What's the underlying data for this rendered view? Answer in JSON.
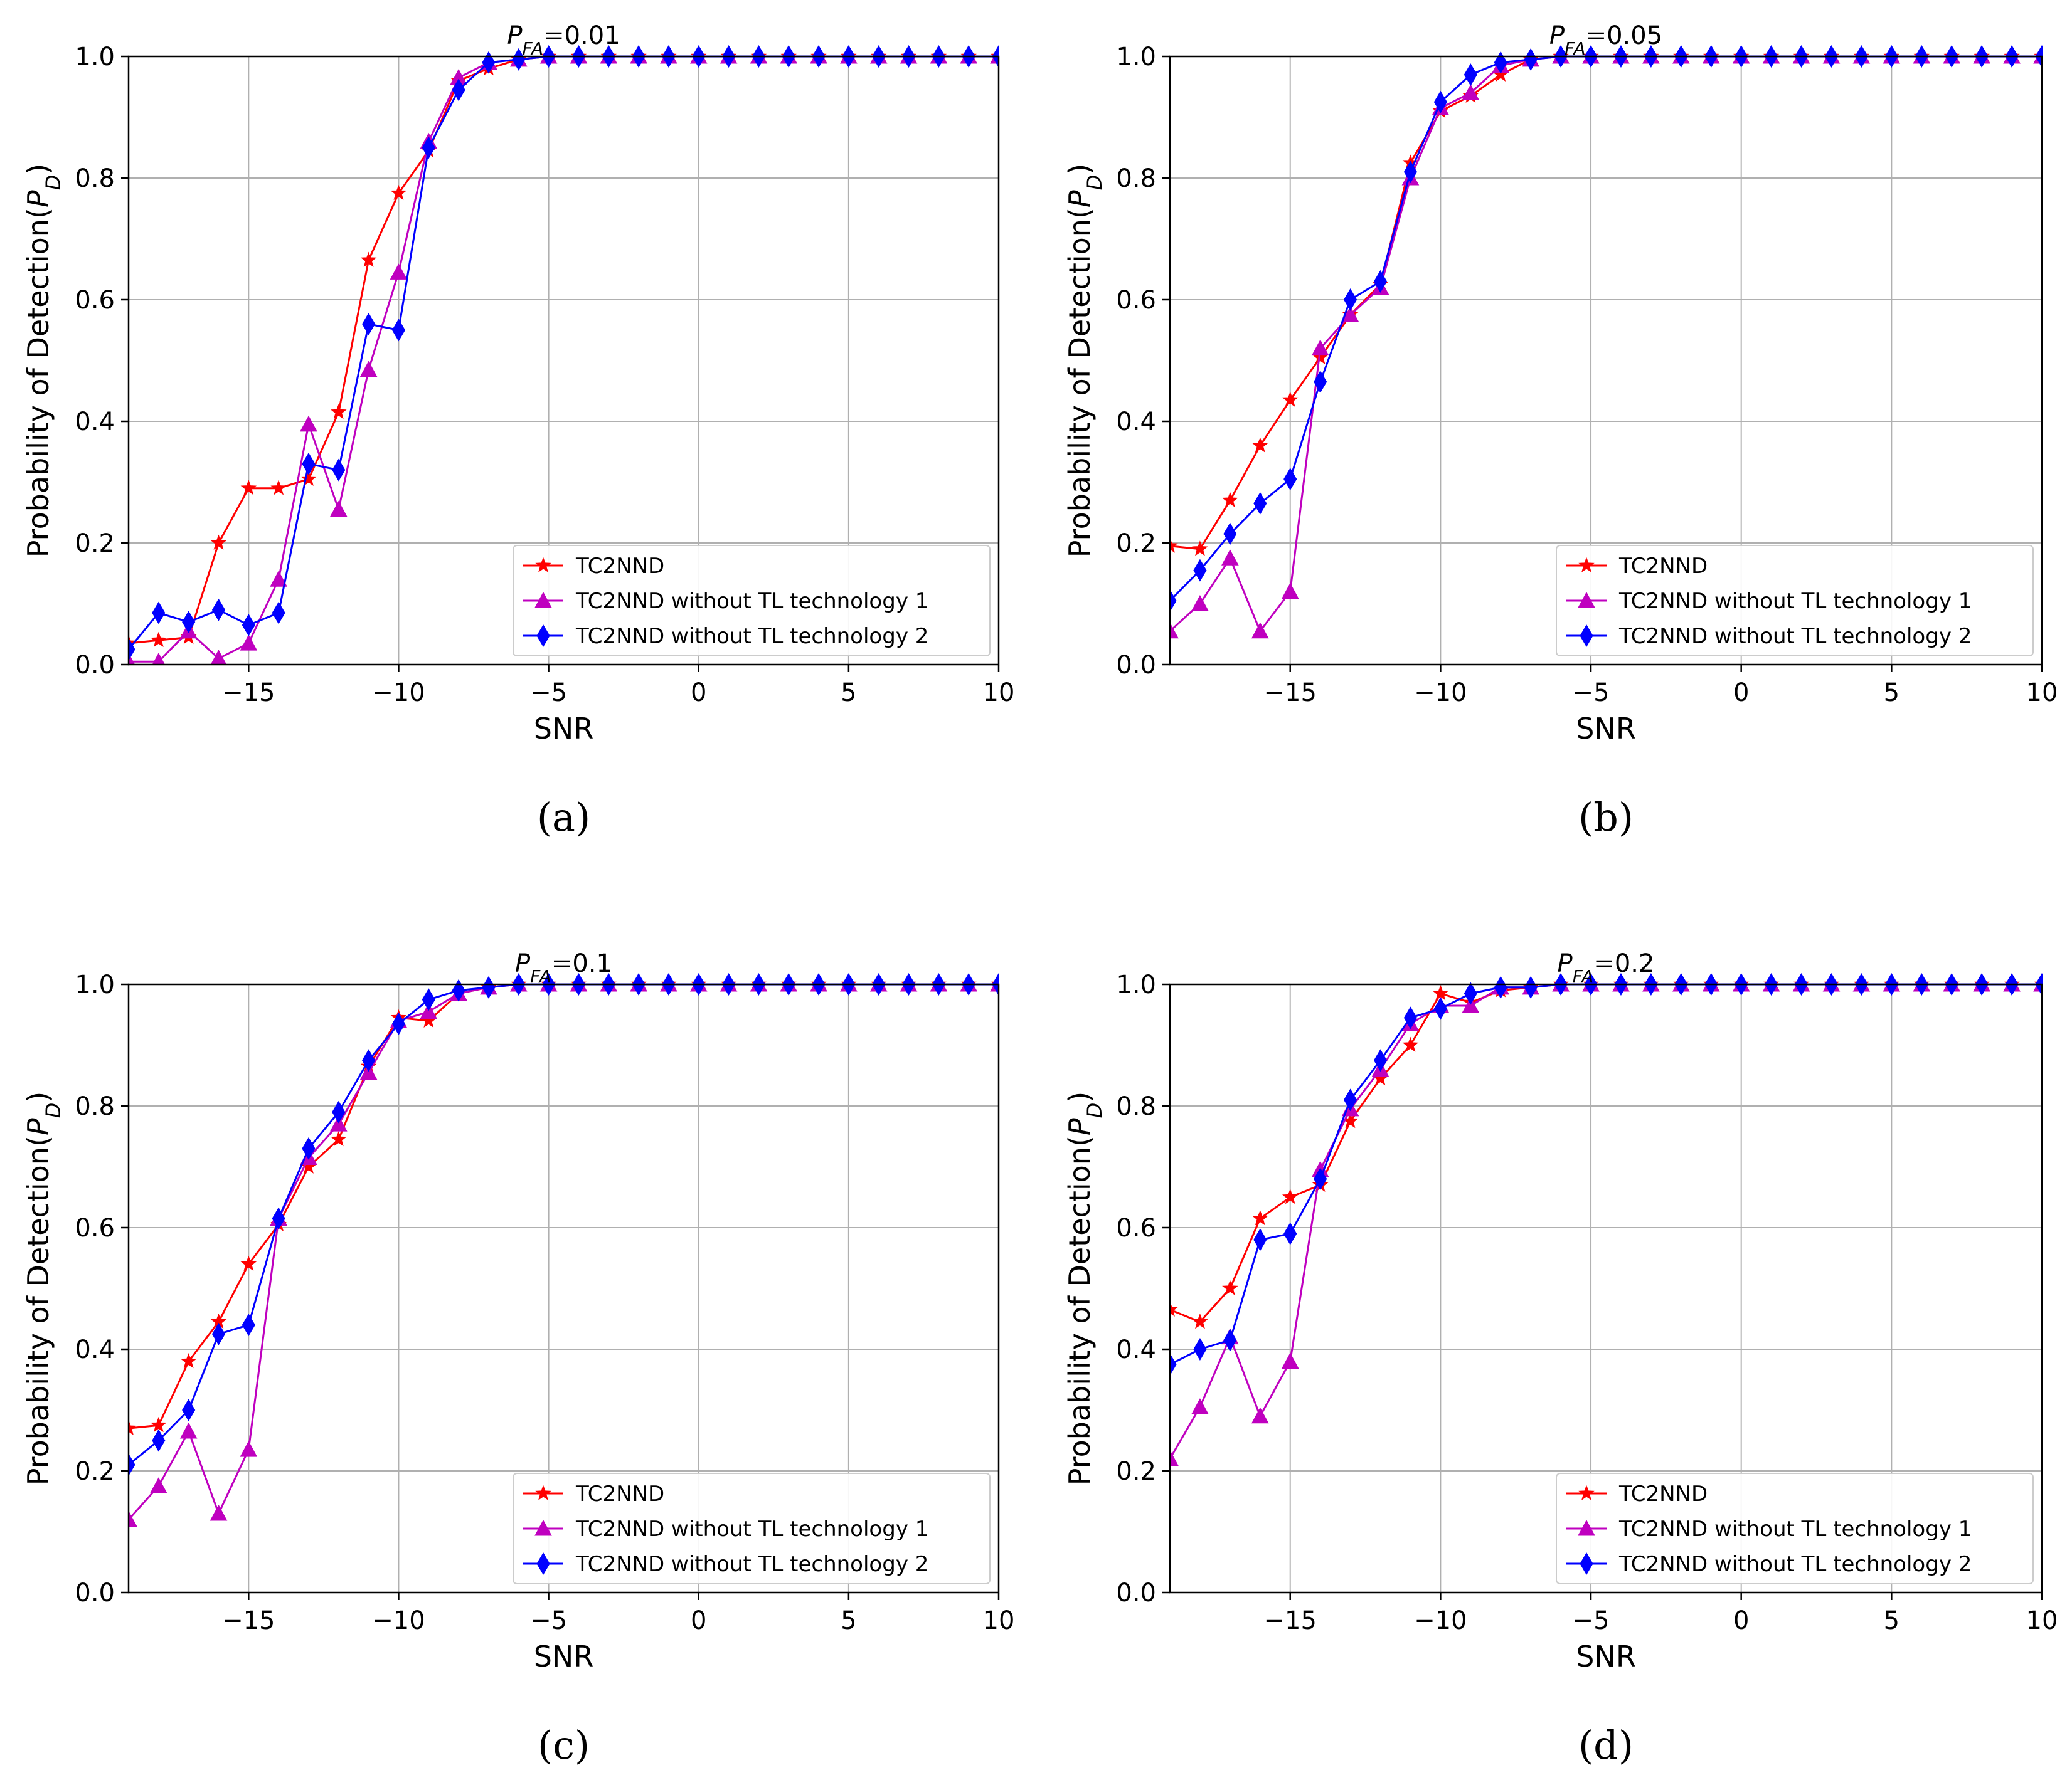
{
  "chart_data": [
    {
      "type": "line",
      "panel_label": "(a)",
      "title_prefix": "P",
      "title_subscript": "FA",
      "title_value": "=0.01",
      "xlabel": "SNR",
      "ylabel": "Probability of Detection(",
      "ylabel_symbol": "P",
      "ylabel_subscript": "D",
      "ylabel_close": ")",
      "xlim": [
        -19,
        10
      ],
      "ylim": [
        0,
        1
      ],
      "xticks": [
        -15,
        -10,
        -5,
        0,
        5,
        10
      ],
      "xtick_labels": [
        "−15",
        "−10",
        "−5",
        "0",
        "5",
        "10"
      ],
      "yticks": [
        0,
        0.2,
        0.4,
        0.6,
        0.8,
        1.0
      ],
      "ytick_labels": [
        "0.0",
        "0.2",
        "0.4",
        "0.6",
        "0.8",
        "1.0"
      ],
      "grid": true,
      "legend_position": "lower-right",
      "x": [
        -19,
        -18,
        -17,
        -16,
        -15,
        -14,
        -13,
        -12,
        -11,
        -10,
        -9,
        -8,
        -7,
        -6,
        -5,
        -4,
        -3,
        -2,
        -1,
        0,
        1,
        2,
        3,
        4,
        5,
        6,
        7,
        8,
        9,
        10
      ],
      "series": [
        {
          "name": "TC2NND",
          "color": "#ff0000",
          "marker": "star",
          "values": [
            0.035,
            0.04,
            0.045,
            0.2,
            0.29,
            0.29,
            0.305,
            0.415,
            0.665,
            0.775,
            0.845,
            0.96,
            0.98,
            0.995,
            1,
            1,
            1,
            1,
            1,
            1,
            1,
            1,
            1,
            1,
            1,
            1,
            1,
            1,
            1,
            1
          ]
        },
        {
          "name": "TC2NND without TL technology 1",
          "color": "#bf00bf",
          "marker": "triangle",
          "values": [
            0.005,
            0.005,
            0.055,
            0.01,
            0.035,
            0.14,
            0.395,
            0.255,
            0.485,
            0.645,
            0.86,
            0.965,
            0.99,
            0.995,
            1,
            1,
            1,
            1,
            1,
            1,
            1,
            1,
            1,
            1,
            1,
            1,
            1,
            1,
            1,
            1
          ]
        },
        {
          "name": "TC2NND without TL technology 2",
          "color": "#0000ff",
          "marker": "diamond",
          "values": [
            0.025,
            0.085,
            0.07,
            0.09,
            0.065,
            0.085,
            0.33,
            0.32,
            0.56,
            0.55,
            0.85,
            0.945,
            0.99,
            0.995,
            1,
            1,
            1,
            1,
            1,
            1,
            1,
            1,
            1,
            1,
            1,
            1,
            1,
            1,
            1,
            1
          ]
        }
      ]
    },
    {
      "type": "line",
      "panel_label": "(b)",
      "title_prefix": "P",
      "title_subscript": "FA",
      "title_value": "=0.05",
      "xlabel": "SNR",
      "ylabel": "Probability of Detection(",
      "ylabel_symbol": "P",
      "ylabel_subscript": "D",
      "ylabel_close": ")",
      "xlim": [
        -19,
        10
      ],
      "ylim": [
        0,
        1
      ],
      "xticks": [
        -15,
        -10,
        -5,
        0,
        5,
        10
      ],
      "xtick_labels": [
        "−15",
        "−10",
        "−5",
        "0",
        "5",
        "10"
      ],
      "yticks": [
        0,
        0.2,
        0.4,
        0.6,
        0.8,
        1.0
      ],
      "ytick_labels": [
        "0.0",
        "0.2",
        "0.4",
        "0.6",
        "0.8",
        "1.0"
      ],
      "grid": true,
      "legend_position": "lower-right",
      "x": [
        -19,
        -18,
        -17,
        -16,
        -15,
        -14,
        -13,
        -12,
        -11,
        -10,
        -9,
        -8,
        -7,
        -6,
        -5,
        -4,
        -3,
        -2,
        -1,
        0,
        1,
        2,
        3,
        4,
        5,
        6,
        7,
        8,
        9,
        10
      ],
      "series": [
        {
          "name": "TC2NND",
          "color": "#ff0000",
          "marker": "star",
          "values": [
            0.195,
            0.19,
            0.27,
            0.36,
            0.435,
            0.505,
            0.575,
            0.625,
            0.825,
            0.91,
            0.935,
            0.97,
            0.995,
            1,
            1,
            1,
            1,
            1,
            1,
            1,
            1,
            1,
            1,
            1,
            1,
            1,
            1,
            1,
            1,
            1
          ]
        },
        {
          "name": "TC2NND without TL technology 1",
          "color": "#bf00bf",
          "marker": "triangle",
          "values": [
            0.055,
            0.1,
            0.175,
            0.055,
            0.12,
            0.52,
            0.575,
            0.62,
            0.8,
            0.915,
            0.94,
            0.985,
            0.995,
            1,
            1,
            1,
            1,
            1,
            1,
            1,
            1,
            1,
            1,
            1,
            1,
            1,
            1,
            1,
            1,
            1
          ]
        },
        {
          "name": "TC2NND without TL technology 2",
          "color": "#0000ff",
          "marker": "diamond",
          "values": [
            0.105,
            0.155,
            0.215,
            0.265,
            0.305,
            0.465,
            0.6,
            0.63,
            0.81,
            0.925,
            0.97,
            0.99,
            0.995,
            1,
            1,
            1,
            1,
            1,
            1,
            1,
            1,
            1,
            1,
            1,
            1,
            1,
            1,
            1,
            1,
            1
          ]
        }
      ]
    },
    {
      "type": "line",
      "panel_label": "(c)",
      "title_prefix": "P",
      "title_subscript": "FA",
      "title_value": "=0.1",
      "xlabel": "SNR",
      "ylabel": "Probability of Detection(",
      "ylabel_symbol": "P",
      "ylabel_subscript": "D",
      "ylabel_close": ")",
      "xlim": [
        -19,
        10
      ],
      "ylim": [
        0,
        1
      ],
      "xticks": [
        -15,
        -10,
        -5,
        0,
        5,
        10
      ],
      "xtick_labels": [
        "−15",
        "−10",
        "−5",
        "0",
        "5",
        "10"
      ],
      "yticks": [
        0,
        0.2,
        0.4,
        0.6,
        0.8,
        1.0
      ],
      "ytick_labels": [
        "0.0",
        "0.2",
        "0.4",
        "0.6",
        "0.8",
        "1.0"
      ],
      "grid": true,
      "legend_position": "lower-right",
      "x": [
        -19,
        -18,
        -17,
        -16,
        -15,
        -14,
        -13,
        -12,
        -11,
        -10,
        -9,
        -8,
        -7,
        -6,
        -5,
        -4,
        -3,
        -2,
        -1,
        0,
        1,
        2,
        3,
        4,
        5,
        6,
        7,
        8,
        9,
        10
      ],
      "series": [
        {
          "name": "TC2NND",
          "color": "#ff0000",
          "marker": "star",
          "values": [
            0.27,
            0.275,
            0.38,
            0.445,
            0.54,
            0.605,
            0.7,
            0.745,
            0.865,
            0.945,
            0.94,
            0.985,
            0.995,
            1,
            1,
            1,
            1,
            1,
            1,
            1,
            1,
            1,
            1,
            1,
            1,
            1,
            1,
            1,
            1,
            1
          ]
        },
        {
          "name": "TC2NND without TL technology 1",
          "color": "#bf00bf",
          "marker": "triangle",
          "values": [
            0.12,
            0.175,
            0.265,
            0.13,
            0.235,
            0.615,
            0.715,
            0.77,
            0.855,
            0.94,
            0.955,
            0.985,
            0.995,
            1,
            1,
            1,
            1,
            1,
            1,
            1,
            1,
            1,
            1,
            1,
            1,
            1,
            1,
            1,
            1,
            1
          ]
        },
        {
          "name": "TC2NND without TL technology 2",
          "color": "#0000ff",
          "marker": "diamond",
          "values": [
            0.21,
            0.25,
            0.3,
            0.425,
            0.44,
            0.615,
            0.73,
            0.79,
            0.875,
            0.935,
            0.975,
            0.99,
            0.995,
            1,
            1,
            1,
            1,
            1,
            1,
            1,
            1,
            1,
            1,
            1,
            1,
            1,
            1,
            1,
            1,
            1
          ]
        }
      ]
    },
    {
      "type": "line",
      "panel_label": "(d)",
      "title_prefix": "P",
      "title_subscript": "FA",
      "title_value": "=0.2",
      "xlabel": "SNR",
      "ylabel": "Probability of Detection(",
      "ylabel_symbol": "P",
      "ylabel_subscript": "D",
      "ylabel_close": ")",
      "xlim": [
        -19,
        10
      ],
      "ylim": [
        0,
        1
      ],
      "xticks": [
        -15,
        -10,
        -5,
        0,
        5,
        10
      ],
      "xtick_labels": [
        "−15",
        "−10",
        "−5",
        "0",
        "5",
        "10"
      ],
      "yticks": [
        0,
        0.2,
        0.4,
        0.6,
        0.8,
        1.0
      ],
      "ytick_labels": [
        "0.0",
        "0.2",
        "0.4",
        "0.6",
        "0.8",
        "1.0"
      ],
      "grid": true,
      "legend_position": "lower-right",
      "x": [
        -19,
        -18,
        -17,
        -16,
        -15,
        -14,
        -13,
        -12,
        -11,
        -10,
        -9,
        -8,
        -7,
        -6,
        -5,
        -4,
        -3,
        -2,
        -1,
        0,
        1,
        2,
        3,
        4,
        5,
        6,
        7,
        8,
        9,
        10
      ],
      "series": [
        {
          "name": "TC2NND",
          "color": "#ff0000",
          "marker": "star",
          "values": [
            0.465,
            0.445,
            0.5,
            0.615,
            0.65,
            0.67,
            0.775,
            0.845,
            0.9,
            0.985,
            0.97,
            0.99,
            0.995,
            1,
            1,
            1,
            1,
            1,
            1,
            1,
            1,
            1,
            1,
            1,
            1,
            1,
            1,
            1,
            1,
            1
          ]
        },
        {
          "name": "TC2NND without TL technology 1",
          "color": "#bf00bf",
          "marker": "triangle",
          "values": [
            0.22,
            0.305,
            0.42,
            0.29,
            0.38,
            0.695,
            0.795,
            0.86,
            0.935,
            0.965,
            0.965,
            0.995,
            0.995,
            1,
            1,
            1,
            1,
            1,
            1,
            1,
            1,
            1,
            1,
            1,
            1,
            1,
            1,
            1,
            1,
            1
          ]
        },
        {
          "name": "TC2NND without TL technology 2",
          "color": "#0000ff",
          "marker": "diamond",
          "values": [
            0.375,
            0.4,
            0.415,
            0.58,
            0.59,
            0.68,
            0.81,
            0.875,
            0.945,
            0.96,
            0.985,
            0.995,
            0.995,
            1,
            1,
            1,
            1,
            1,
            1,
            1,
            1,
            1,
            1,
            1,
            1,
            1,
            1,
            1,
            1,
            1
          ]
        }
      ]
    }
  ]
}
